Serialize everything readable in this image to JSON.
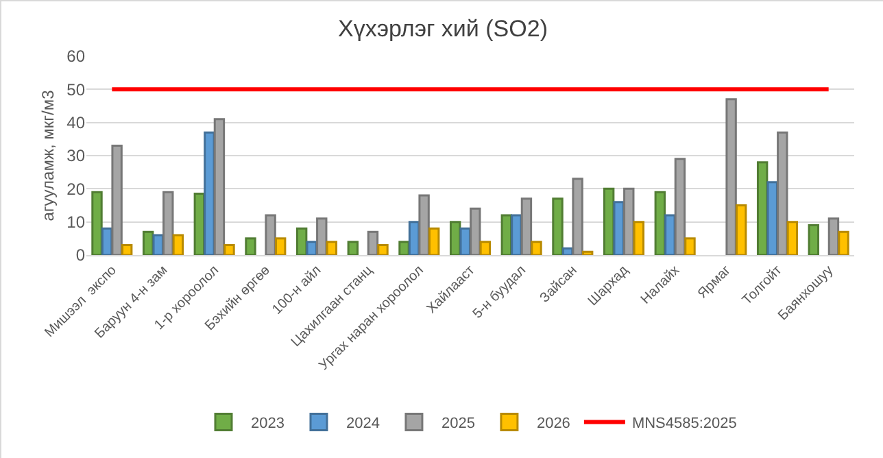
{
  "chart_data": {
    "type": "bar",
    "title": "Хүхэрлэг хий (SO2)",
    "ylabel": "агууламж, мкг/м3",
    "categories": [
      "Мишээл  экспо",
      "Баруун 4-н зам",
      "1-р хороолол",
      "Бэхийн өргөө",
      "100-н айл",
      "Цахилгаан станц",
      "Ургах наран хороолол",
      "Хайлааст",
      "5-н буудал",
      "Зайсан",
      "Шархад",
      "Налайх",
      "Ярмаг",
      "Толгойт",
      "Баянхошуу"
    ],
    "series": [
      {
        "name": "2023",
        "color": "#70ad47",
        "values": [
          19,
          7,
          18.5,
          5,
          8,
          4,
          4,
          10,
          12,
          17,
          20,
          19,
          null,
          28,
          9
        ]
      },
      {
        "name": "2024",
        "color": "#5b9bd5",
        "values": [
          8,
          6,
          37,
          null,
          4,
          null,
          10,
          8,
          12,
          2,
          16,
          12,
          null,
          22,
          null
        ]
      },
      {
        "name": "2025",
        "color": "#a5a5a5",
        "values": [
          33,
          19,
          41,
          12,
          11,
          7,
          18,
          14,
          17,
          23,
          20,
          29,
          47,
          37,
          11
        ]
      },
      {
        "name": "2026",
        "color": "#ffc000",
        "values": [
          3,
          6,
          3,
          5,
          4,
          3,
          8,
          4,
          4,
          1,
          10,
          5,
          15,
          10,
          7
        ]
      },
      {
        "name": "MNS4585:2025",
        "type": "line",
        "color": "#ff0000",
        "values": [
          50,
          50,
          50,
          50,
          50,
          50,
          50,
          50,
          50,
          50,
          50,
          50,
          50,
          50,
          50
        ]
      }
    ],
    "ylim": [
      0,
      60
    ],
    "yticks": [
      0,
      10,
      20,
      30,
      40,
      50,
      60
    ],
    "grid": "y",
    "legend": "bottom"
  }
}
